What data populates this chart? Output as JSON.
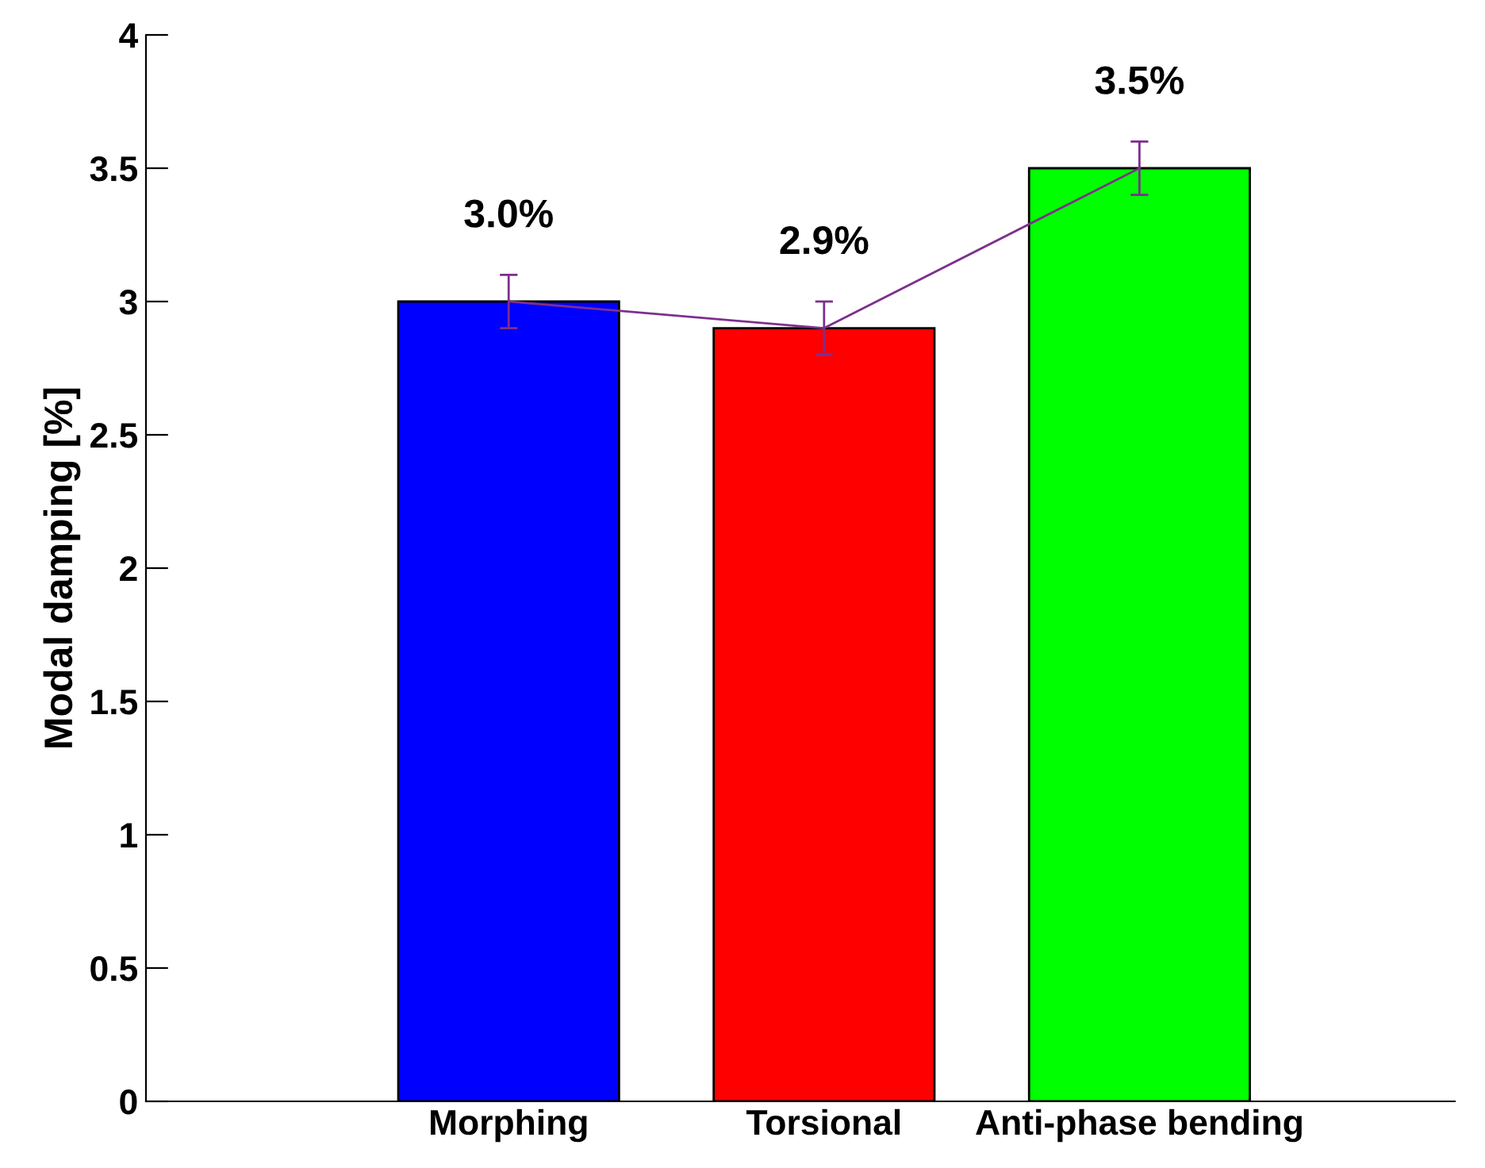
{
  "chart_data": {
    "type": "bar",
    "ylabel": "Modal damping [%]",
    "categories": [
      "Morphing",
      "Torsional",
      "Anti-phase bending"
    ],
    "ylim": [
      0,
      4
    ],
    "yticks": [
      0,
      0.5,
      1,
      1.5,
      2,
      2.5,
      3,
      3.5,
      4
    ],
    "grid": false,
    "series": [
      {
        "colors": [
          "#0000ff",
          "#ff0000",
          "#00ff00"
        ],
        "values": [
          3.0,
          2.9,
          3.5
        ],
        "value_labels": [
          "3.0%",
          "2.9%",
          "3.5%"
        ]
      },
      {
        "type": "line",
        "color": "#7e2f8e",
        "values": [
          3.0,
          2.9,
          3.5
        ],
        "errors": [
          0.1,
          0.1,
          0.1
        ]
      }
    ]
  }
}
